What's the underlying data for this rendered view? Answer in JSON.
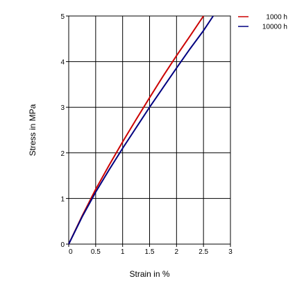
{
  "chart_data": {
    "type": "line",
    "xlabel": "Strain in %",
    "ylabel": "Stress in MPa",
    "xlim": [
      0,
      3
    ],
    "ylim": [
      0,
      5
    ],
    "xticks": [
      "0",
      "0.5",
      "1",
      "1.5",
      "2",
      "2.5",
      "3"
    ],
    "yticks": [
      "0",
      "1",
      "2",
      "3",
      "4",
      "5"
    ],
    "grid": true,
    "legend_position": "top-right",
    "series": [
      {
        "name": "1000 h",
        "color": "#cc0000",
        "x": [
          0,
          0.25,
          0.5,
          0.75,
          1.0,
          1.25,
          1.5,
          1.75,
          2.0,
          2.25,
          2.5
        ],
        "y": [
          0,
          0.62,
          1.2,
          1.73,
          2.24,
          2.73,
          3.21,
          3.68,
          4.13,
          4.56,
          5.0
        ]
      },
      {
        "name": "10000 h",
        "color": "#000080",
        "x": [
          0,
          0.25,
          0.5,
          0.75,
          1.0,
          1.25,
          1.5,
          1.75,
          2.0,
          2.25,
          2.5,
          2.68
        ],
        "y": [
          0,
          0.6,
          1.14,
          1.63,
          2.1,
          2.55,
          3.0,
          3.43,
          3.86,
          4.28,
          4.68,
          5.0
        ]
      }
    ]
  }
}
